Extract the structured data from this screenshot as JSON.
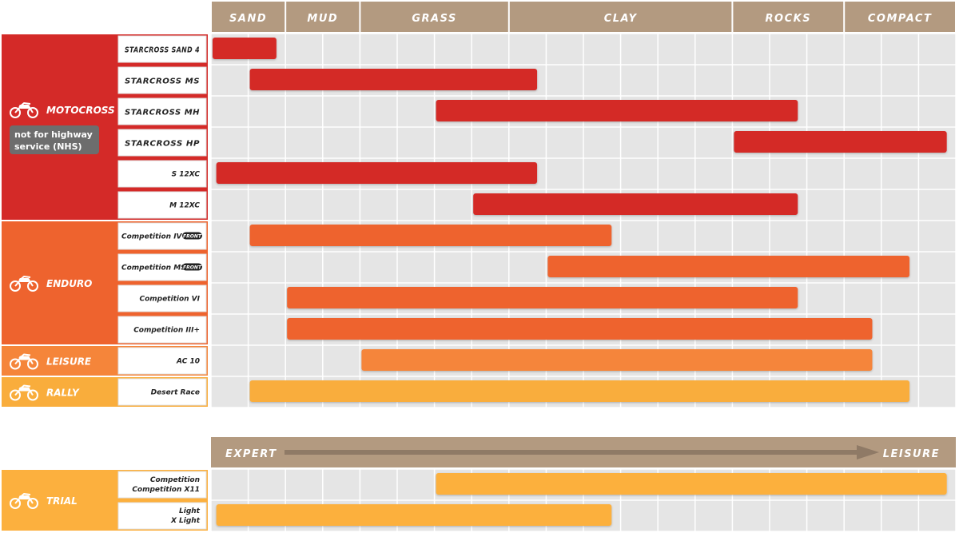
{
  "colors": {
    "header": "#b39a80",
    "grid_bg": "#e5e5e5",
    "grid_line": "#ffffff",
    "motocross": "#d42a28",
    "enduro": "#ee632e",
    "leisure": "#f5853a",
    "rally": "#f9ad3c",
    "trial": "#fcb03e",
    "nhs_badge": "#6d6d6d"
  },
  "chart_data": [
    {
      "type": "bar",
      "orientation": "horizontal-range",
      "terrain_axis": [
        "SAND",
        "MUD",
        "GRASS",
        "CLAY",
        "ROCKS",
        "COMPACT"
      ],
      "categories": [
        {
          "name": "MOTOCROSS",
          "note": "not for highway service (NHS)",
          "color": "#d42a28",
          "icon": "motocross-bike-icon",
          "tires": [
            {
              "label": "STARCROSS SAND 4",
              "logo": true,
              "start": 0,
              "end": 0.9
            },
            {
              "label": "STARCROSS MS",
              "logo": true,
              "start": 0.5,
              "end": 4.4
            },
            {
              "label": "STARCROSS MH",
              "logo": true,
              "start": 3.0,
              "end": 7.9
            },
            {
              "label": "STARCROSS HP",
              "logo": true,
              "start": 7.0,
              "end": 9.9
            },
            {
              "label": "S 12XC",
              "start": 0.05,
              "end": 4.4
            },
            {
              "label": "M 12XC",
              "start": 3.5,
              "end": 7.9
            }
          ]
        },
        {
          "name": "ENDURO",
          "color": "#ee632e",
          "icon": "enduro-bike-icon",
          "tires": [
            {
              "label": "Competition IV",
              "badge": "FRONT",
              "start": 0.5,
              "end": 5.4
            },
            {
              "label": "Competition MS",
              "badge": "FRONT",
              "start": 4.5,
              "end": 9.4
            },
            {
              "label": "Competition VI",
              "start": 1.0,
              "end": 7.9
            },
            {
              "label": "Competition III",
              "superscript": "+",
              "start": 1.0,
              "end": 8.9
            }
          ]
        },
        {
          "name": "LEISURE",
          "color": "#f5853a",
          "icon": "leisure-bike-icon",
          "tires": [
            {
              "label": "AC 10",
              "start": 2.0,
              "end": 8.9
            }
          ]
        },
        {
          "name": "RALLY",
          "color": "#f9ad3c",
          "icon": "rally-bike-icon",
          "tires": [
            {
              "label": "Desert Race",
              "start": 0.5,
              "end": 9.4
            }
          ]
        }
      ]
    },
    {
      "type": "bar",
      "orientation": "horizontal-range",
      "scale_start": "EXPERT",
      "scale_end": "LEISURE",
      "categories": [
        {
          "name": "TRIAL",
          "color": "#fcb03e",
          "icon": "trial-bike-icon",
          "tires": [
            {
              "label": "Competition\nCompetition X11",
              "start": 3.0,
              "end": 9.9
            },
            {
              "label": "Light\nX Light",
              "start": 0.05,
              "end": 5.4
            }
          ]
        }
      ]
    }
  ]
}
